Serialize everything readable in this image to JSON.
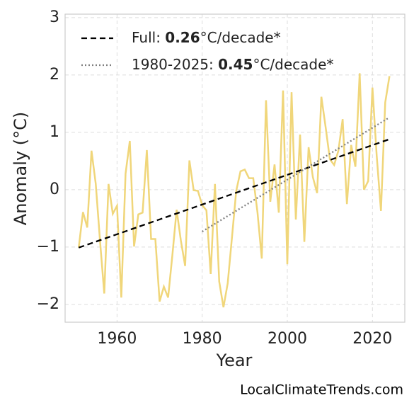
{
  "chart_data": {
    "type": "line",
    "xlabel": "Year",
    "ylabel": "Anomaly (°C)",
    "source": "LocalClimateTrends.com",
    "xlim": [
      1947.8,
      2027.6
    ],
    "xticks": [
      1960,
      1980,
      2000,
      2020
    ],
    "ylim": [
      -2.31,
      3.06
    ],
    "yticks": [
      {
        "value": -2,
        "label": "−2"
      },
      {
        "value": -1,
        "label": "−1"
      },
      0,
      1,
      2,
      3
    ],
    "grid": true,
    "legend": "upper left",
    "series": [
      {
        "color": "#f0d67a",
        "x": [
          1951,
          1952,
          1953,
          1954,
          1955,
          1956,
          1957,
          1958,
          1959,
          1960,
          1961,
          1962,
          1963,
          1964,
          1965,
          1966,
          1967,
          1968,
          1969,
          1970,
          1971,
          1972,
          1973,
          1974,
          1975,
          1976,
          1977,
          1978,
          1979,
          1980,
          1981,
          1982,
          1983,
          1984,
          1985,
          1986,
          1987,
          1988,
          1989,
          1990,
          1991,
          1992,
          1993,
          1994,
          1995,
          1996,
          1997,
          1998,
          1999,
          2000,
          2001,
          2002,
          2003,
          2004,
          2005,
          2006,
          2007,
          2008,
          2009,
          2010,
          2011,
          2012,
          2013,
          2014,
          2015,
          2016,
          2017,
          2018,
          2019,
          2020,
          2021,
          2022,
          2023,
          2024
        ],
        "values": [
          -1.01,
          -0.39,
          -0.66,
          0.68,
          0.1,
          -0.89,
          -1.81,
          0.1,
          -0.42,
          -0.28,
          -1.88,
          0.28,
          0.85,
          -0.99,
          -0.43,
          -0.4,
          0.69,
          -0.86,
          -0.86,
          -1.95,
          -1.69,
          -1.88,
          -1.14,
          -0.35,
          -0.89,
          -1.33,
          0.51,
          -0.01,
          -0.02,
          -0.27,
          -0.36,
          -1.47,
          0.1,
          -1.6,
          -2.05,
          -1.63,
          -0.83,
          -0.02,
          0.32,
          0.35,
          0.2,
          0.2,
          -0.4,
          -1.2,
          1.56,
          -0.21,
          0.44,
          -0.4,
          1.73,
          -1.3,
          1.7,
          -0.52,
          0.96,
          -0.91,
          0.74,
          0.22,
          -0.06,
          1.62,
          1.09,
          0.53,
          0.43,
          0.68,
          1.23,
          -0.25,
          0.78,
          0.4,
          2.03,
          0.0,
          0.15,
          1.78,
          0.59,
          -0.37,
          1.52,
          1.98
        ]
      }
    ],
    "trends": [
      {
        "label": [
          "Full: ",
          "0.26",
          "°C/decade*"
        ],
        "color": "#000000",
        "dash": "dashed",
        "x": [
          1951,
          2024
        ],
        "values": [
          -1.01,
          0.88
        ]
      },
      {
        "label": [
          "1980-2025: ",
          "0.45",
          "°C/decade*"
        ],
        "color": "#808080",
        "dash": "dotted",
        "x": [
          1980,
          2024
        ],
        "values": [
          -0.73,
          1.26
        ]
      }
    ]
  }
}
